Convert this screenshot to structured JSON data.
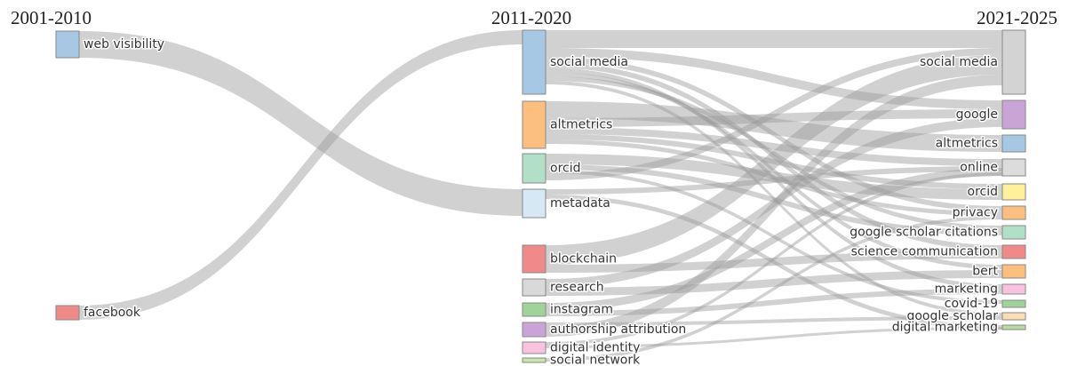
{
  "columns": [
    {
      "title": "2001-2010",
      "nodes": [
        {
          "label": "web visibility",
          "color": "#a6c8e4"
        },
        {
          "label": "facebook",
          "color": "#f08a8a"
        }
      ]
    },
    {
      "title": "2011-2020",
      "nodes": [
        {
          "label": "social media",
          "color": "#a6c8e4"
        },
        {
          "label": "altmetrics",
          "color": "#fdbf7f"
        },
        {
          "label": "orcid",
          "color": "#b2dfc8"
        },
        {
          "label": "metadata",
          "color": "#d5e8f4"
        },
        {
          "label": "blockchain",
          "color": "#f08a8a"
        },
        {
          "label": "research",
          "color": "#d9d9d9"
        },
        {
          "label": "instagram",
          "color": "#9fd39a"
        },
        {
          "label": "authorship attribution",
          "color": "#c9a4d6"
        },
        {
          "label": "digital identity",
          "color": "#f9c2df"
        },
        {
          "label": "social network",
          "color": "#c9e6a8"
        }
      ]
    },
    {
      "title": "2021-2025",
      "nodes": [
        {
          "label": "social media",
          "color": "#d3d3d3"
        },
        {
          "label": "google",
          "color": "#c9a4d6"
        },
        {
          "label": "altmetrics",
          "color": "#a6c8e4"
        },
        {
          "label": "online",
          "color": "#dcdcdc"
        },
        {
          "label": "orcid",
          "color": "#fff09a"
        },
        {
          "label": "privacy",
          "color": "#fdbf7f"
        },
        {
          "label": "google scholar citations",
          "color": "#b2dfc8"
        },
        {
          "label": "science communication",
          "color": "#f08a8a"
        },
        {
          "label": "bert",
          "color": "#fdbf7f"
        },
        {
          "label": "marketing",
          "color": "#f9c2df"
        },
        {
          "label": "covid-19",
          "color": "#9fd39a"
        },
        {
          "label": "google scholar",
          "color": "#fddcb8"
        },
        {
          "label": "digital marketing",
          "color": "#b8dca0"
        }
      ]
    }
  ]
}
